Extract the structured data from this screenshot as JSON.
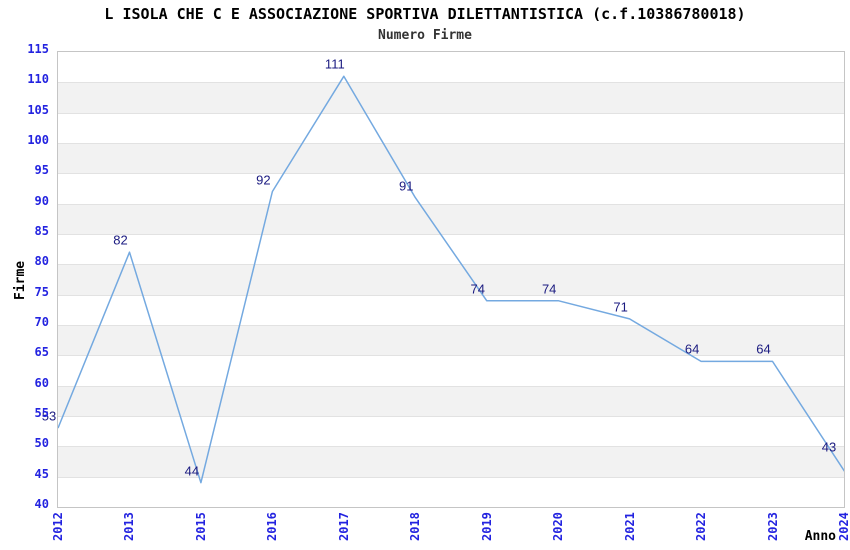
{
  "chart_data": {
    "type": "line",
    "title": "L ISOLA CHE C E ASSOCIAZIONE SPORTIVA DILETTANTISTICA (c.f.10386780018)",
    "subtitle": "Numero Firme",
    "xlabel": "Anno",
    "ylabel": "Firme",
    "categories": [
      "2012",
      "2013",
      "2015",
      "2016",
      "2017",
      "2018",
      "2019",
      "2020",
      "2021",
      "2022",
      "2023",
      "2024"
    ],
    "values": [
      53,
      82,
      44,
      92,
      111,
      91,
      74,
      74,
      71,
      64,
      64,
      43
    ],
    "ylim": [
      40,
      115
    ],
    "ytick_step": 5,
    "grid": "horizontal-bands-alternating",
    "legend": "none",
    "point_labels_visible": true,
    "colors": {
      "line": "#74a9e0",
      "point_label": "#1a1a80",
      "tick_label": "#2323e0",
      "band_gray": "#f2f2f2",
      "band_white": "#ffffff",
      "gridline": "#e2e2e2",
      "plot_border": "#c5c5c5",
      "title": "#000000",
      "subtitle": "#333333",
      "axis_title": "#000000",
      "background": "#ffffff"
    }
  }
}
